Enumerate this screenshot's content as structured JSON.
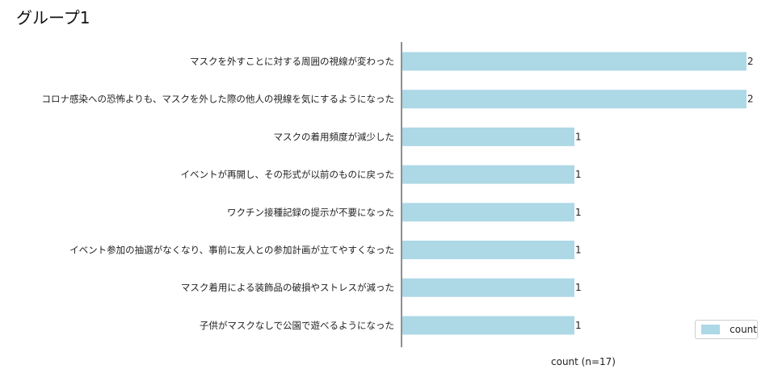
{
  "header": {
    "title": "グループ1"
  },
  "chart_data": {
    "type": "bar",
    "orientation": "horizontal",
    "categories": [
      "マスクを外すことに対する周囲の視線が変わった",
      "コロナ感染への恐怖よりも、マスクを外した際の他人の視線を気にするようになった",
      "マスクの着用頻度が減少した",
      "イベントが再開し、その形式が以前のものに戻った",
      "ワクチン接種記録の提示が不要になった",
      "イベント参加の抽選がなくなり、事前に友人との参加計画が立てやすくなった",
      "マスク着用による装飾品の破損やストレスが減った",
      "子供がマスクなしで公園で遊べるようになった"
    ],
    "series": [
      {
        "name": "count",
        "values": [
          2,
          2,
          1,
          1,
          1,
          1,
          1,
          1
        ]
      }
    ],
    "xlabel": "count (n=17)",
    "xlim": [
      0,
      2
    ],
    "legend": "bottom-right",
    "grid": false,
    "bar_color": "#add8e6"
  }
}
